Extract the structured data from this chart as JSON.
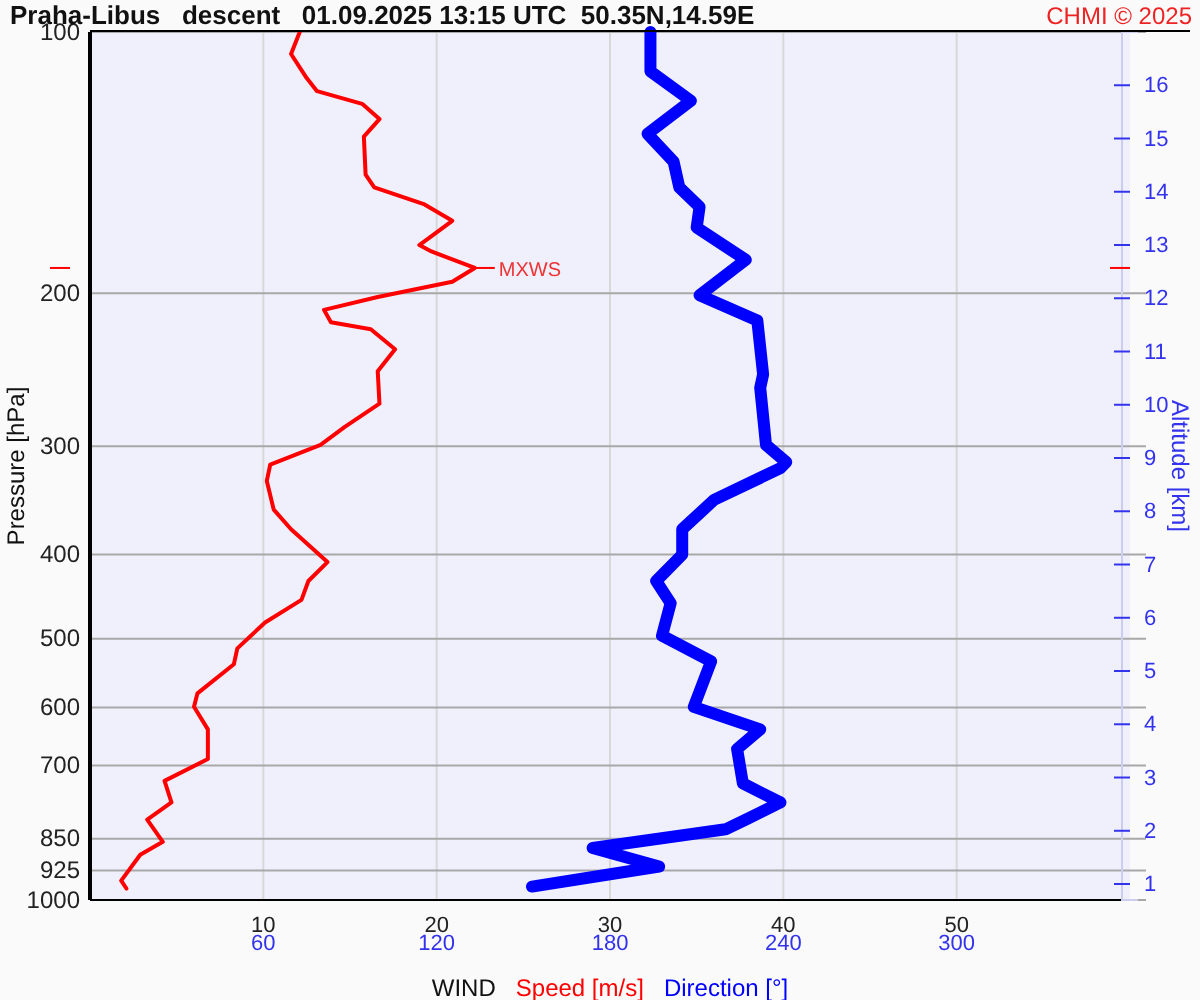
{
  "chart_data": {
    "type": "line",
    "orientation": "horizontal",
    "title": "Praha-Libus   descent   01.09.2025 13:15 UTC  50.35N,14.59E",
    "xlabel": "WIND",
    "ylabel": "Pressure [hPa]",
    "y2label": "Altitude [km]",
    "annotations": [
      {
        "text": "MXWS",
        "x": 22.2,
        "y": 187
      },
      "CHMI © 2025"
    ],
    "log": "y",
    "grid": true,
    "legend": "bottom",
    "xlim": [
      0,
      60
    ],
    "xticks": [
      10,
      20,
      30,
      40,
      50
    ],
    "x2lim": [
      0,
      360
    ],
    "x2ticks": [
      60,
      120,
      180,
      240,
      300
    ],
    "ylim": [
      1000,
      100
    ],
    "yticks": [
      100,
      200,
      300,
      400,
      500,
      600,
      700,
      850,
      925,
      1000
    ],
    "y2lim": [
      0.7,
      17.0
    ],
    "y2ticks": [
      1,
      2,
      3,
      4,
      5,
      6,
      7,
      8,
      9,
      10,
      11,
      12,
      13,
      14,
      15,
      16
    ],
    "series": [
      {
        "name": "Speed [m/s]",
        "color": "#ff0000",
        "line_style": "solid",
        "x": [
          100,
          106,
          113,
          117,
          121,
          126,
          132,
          146,
          151,
          158,
          165,
          176,
          179,
          187,
          194,
          202,
          209,
          216,
          220,
          232,
          246,
          268,
          285,
          299,
          315,
          329,
          355,
          374,
          408,
          429,
          451,
          479,
          513,
          535,
          578,
          599,
          636,
          688,
          729,
          772,
          808,
          857,
          887,
          950,
          970
        ],
        "values": [
          12.1,
          11.6,
          12.5,
          13.1,
          15.7,
          16.7,
          15.8,
          15.9,
          16.4,
          19.3,
          20.9,
          19.0,
          19.7,
          22.2,
          20.9,
          16.6,
          13.5,
          13.9,
          16.2,
          17.6,
          16.6,
          16.7,
          14.7,
          13.3,
          10.4,
          10.2,
          10.6,
          11.6,
          13.7,
          12.6,
          12.2,
          10.1,
          8.5,
          8.3,
          6.2,
          6.0,
          6.8,
          6.8,
          4.3,
          4.7,
          3.3,
          4.2,
          2.9,
          1.8,
          2.1
        ]
      },
      {
        "name": "Direction [°]",
        "color": "#0000ff",
        "axis": "x2",
        "line_style": "solid",
        "x": [
          100,
          111,
          120,
          131,
          141,
          151,
          159,
          168,
          183,
          201,
          215,
          248,
          257,
          299,
          313,
          318,
          346,
          374,
          400,
          429,
          455,
          496,
          531,
          599,
          636,
          670,
          734,
          772,
          808,
          829,
          871,
          915,
          965
        ],
        "values": [
          194,
          194,
          208,
          193,
          202,
          204,
          211,
          210,
          227,
          211,
          231,
          233,
          232,
          234,
          241,
          239,
          216,
          205,
          205,
          196,
          201,
          198,
          215,
          209,
          232,
          224,
          226,
          239,
          227,
          220,
          174,
          197,
          153
        ]
      }
    ]
  }
}
